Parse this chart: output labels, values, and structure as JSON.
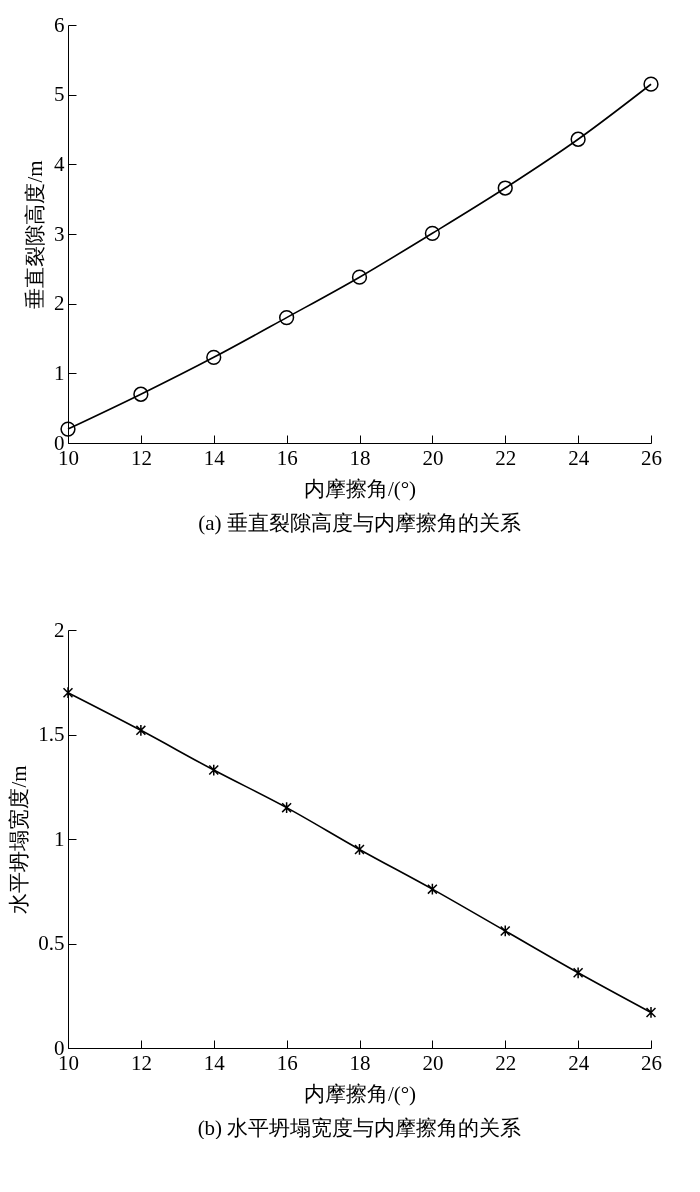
{
  "chart_data": [
    {
      "type": "line",
      "xlabel": "内摩擦角/(°)",
      "ylabel": "垂直裂隙高度/m",
      "annotations": [
        "(a) 垂直裂隙高度与内摩擦角的关系"
      ],
      "x": [
        10,
        12,
        14,
        16,
        18,
        20,
        22,
        24,
        26
      ],
      "series": [
        {
          "color": "#000000",
          "values": [
            0.2,
            0.7,
            1.23,
            1.8,
            2.38,
            3.01,
            3.66,
            4.36,
            5.15
          ]
        }
      ],
      "xlim": [
        10,
        26
      ],
      "xticks": [
        10,
        12,
        14,
        16,
        18,
        20,
        22,
        24,
        26
      ],
      "ylim": [
        0,
        6
      ],
      "yticks": [
        0,
        1,
        2,
        3,
        4,
        5,
        6
      ],
      "marker": "circle",
      "line_style": "solid",
      "grid": false,
      "legend": false
    },
    {
      "type": "line",
      "xlabel": "内摩擦角/(°)",
      "ylabel": "水平坍塌宽度/m",
      "annotations": [
        "(b) 水平坍塌宽度与内摩擦角的关系"
      ],
      "x": [
        10,
        12,
        14,
        16,
        18,
        20,
        22,
        24,
        26
      ],
      "series": [
        {
          "color": "#000000",
          "values": [
            1.7,
            1.52,
            1.33,
            1.15,
            0.95,
            0.76,
            0.56,
            0.36,
            0.17
          ]
        }
      ],
      "xlim": [
        10,
        26
      ],
      "xticks": [
        10,
        12,
        14,
        16,
        18,
        20,
        22,
        24,
        26
      ],
      "ylim": [
        0,
        2
      ],
      "yticks": [
        0,
        0.5,
        1,
        1.5,
        2
      ],
      "marker": "cross",
      "line_style": "solid",
      "grid": false,
      "legend": false
    }
  ]
}
